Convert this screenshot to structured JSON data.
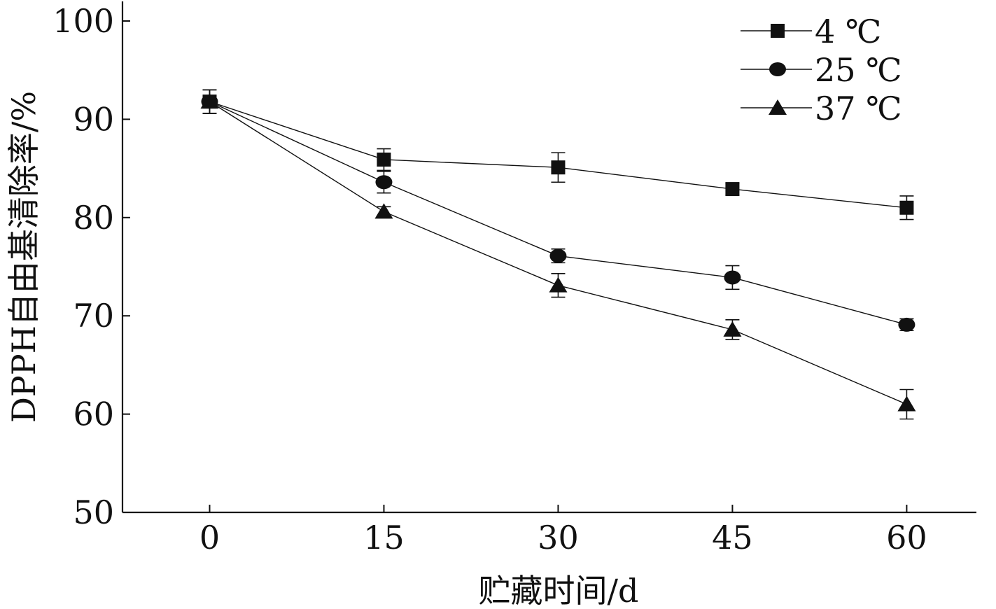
{
  "chart_data": {
    "type": "line",
    "xlabel": "贮藏时间/d",
    "ylabel": "DPPH自由基清除率/%",
    "x": [
      0,
      15,
      30,
      45,
      60
    ],
    "xticks": [
      "0",
      "15",
      "30",
      "45",
      "60"
    ],
    "xlim": [
      -7.5,
      66
    ],
    "yticks": [
      "50",
      "60",
      "70",
      "80",
      "90",
      "100"
    ],
    "ylim": [
      50,
      100
    ],
    "legend_position": "top-right",
    "series": [
      {
        "name": "4 ℃",
        "marker": "square",
        "values": [
          91.8,
          85.9,
          85.1,
          82.9,
          81.0
        ],
        "errors": [
          1.2,
          1.1,
          1.5,
          0.6,
          1.2
        ]
      },
      {
        "name": "25 ℃",
        "marker": "circle",
        "values": [
          91.8,
          83.6,
          76.1,
          73.9,
          69.1
        ],
        "errors": [
          1.2,
          1.1,
          0.7,
          1.2,
          0.6
        ]
      },
      {
        "name": "37 ℃",
        "marker": "triangle",
        "values": [
          91.8,
          80.6,
          73.1,
          68.6,
          61.0
        ],
        "errors": [
          1.2,
          0.5,
          1.2,
          1.0,
          1.5
        ]
      }
    ]
  }
}
